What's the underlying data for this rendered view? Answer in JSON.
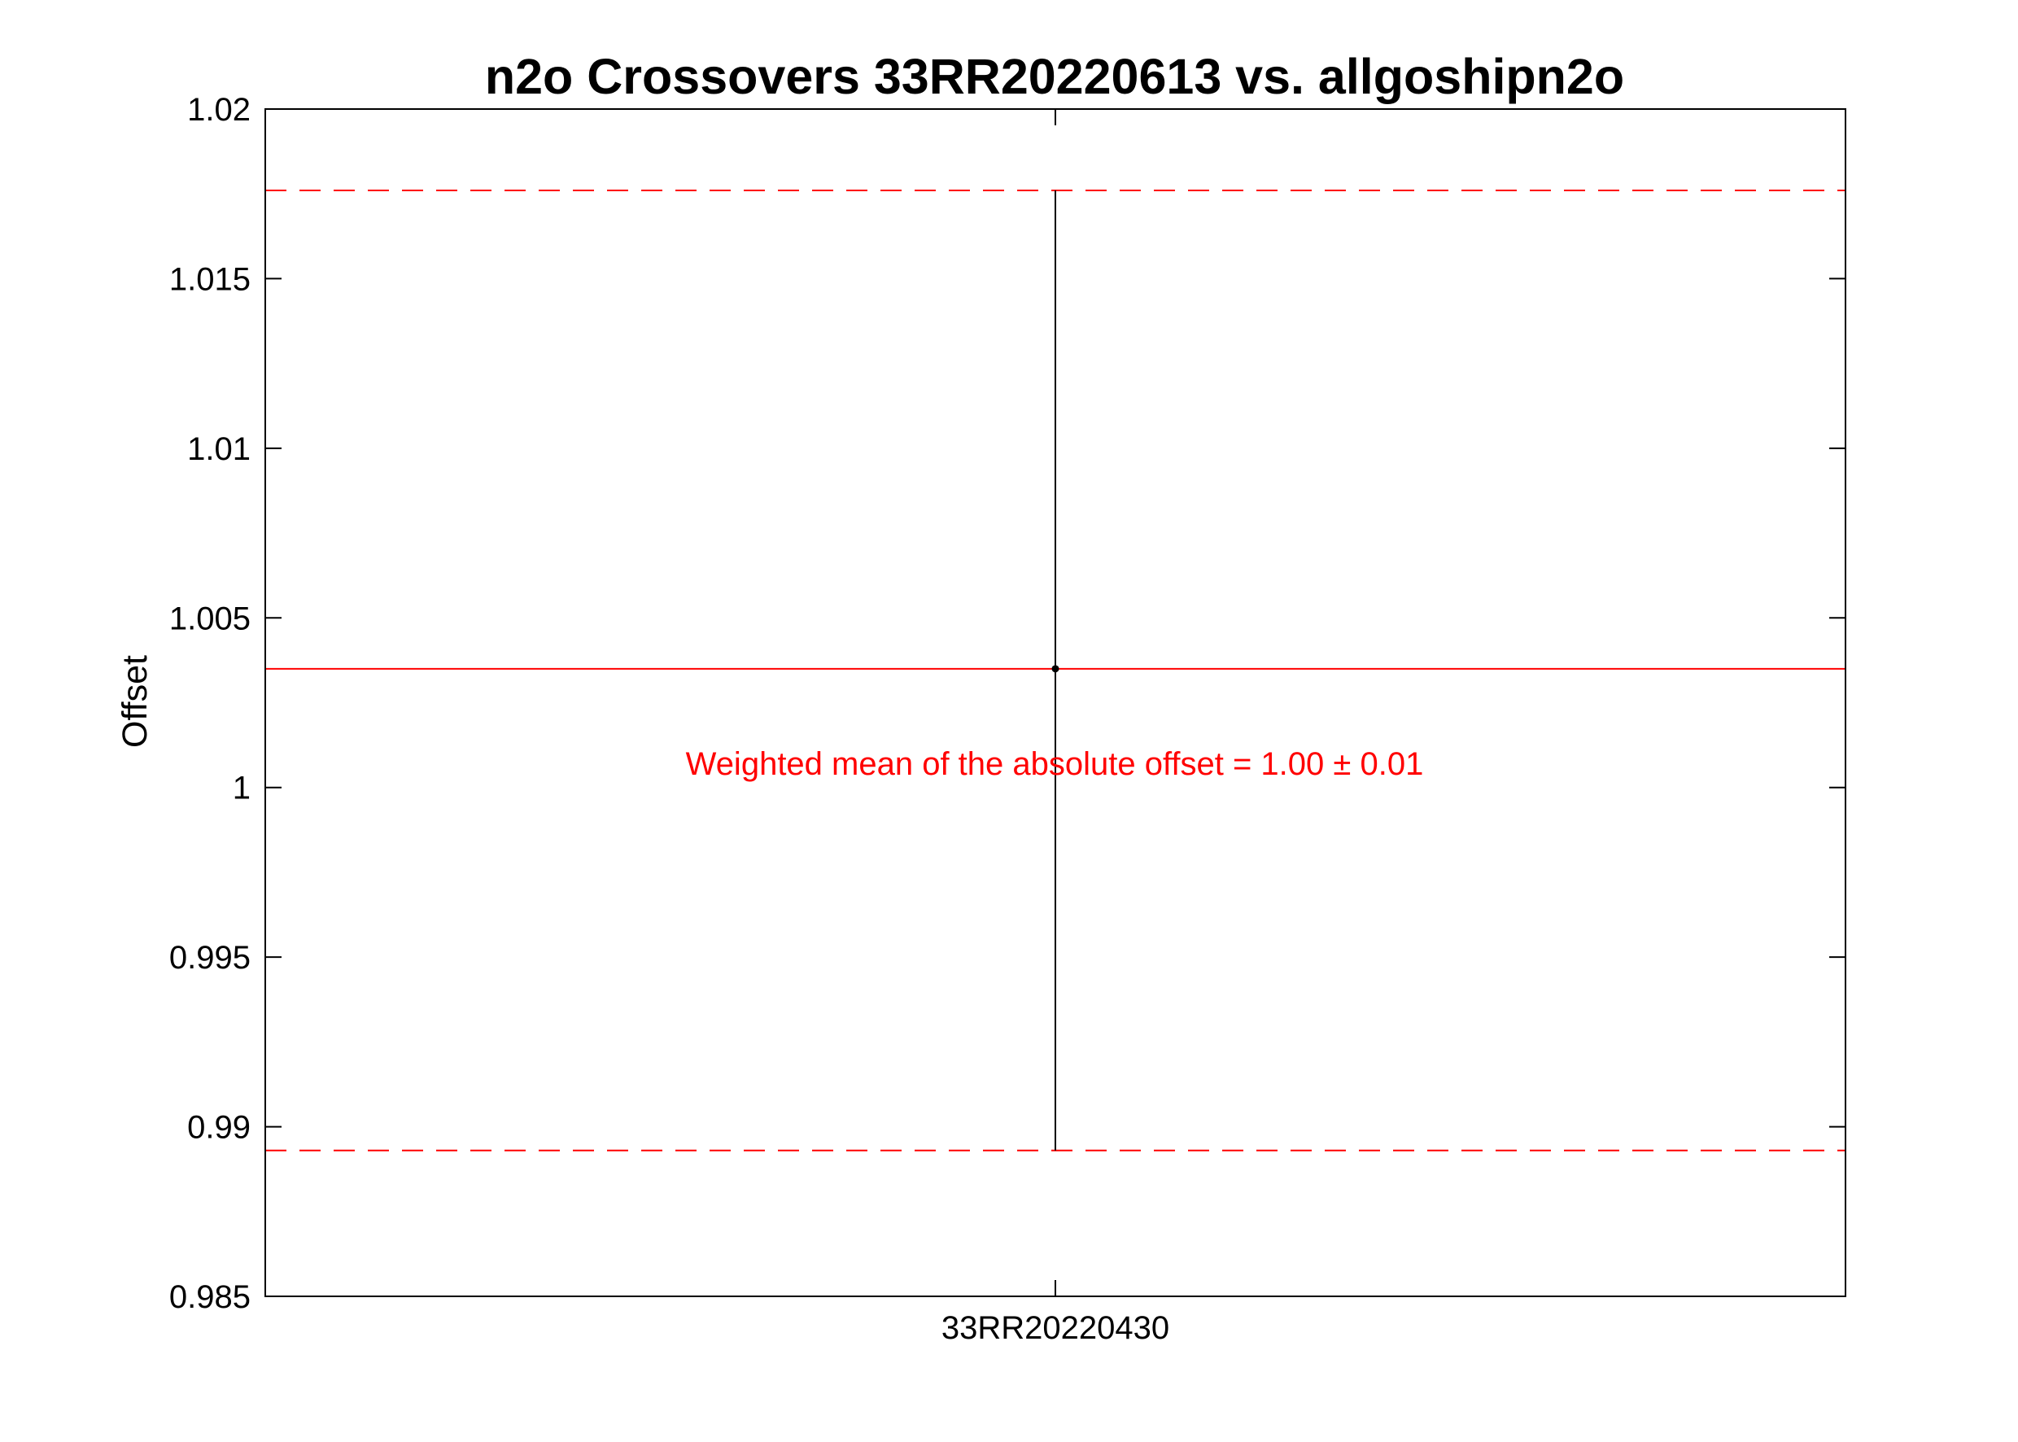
{
  "chart_data": {
    "type": "scatter",
    "title": "n2o Crossovers 33RR20220613 vs. allgoshipn2o",
    "xlabel": "",
    "ylabel": "Offset",
    "ylim": [
      0.985,
      1.02
    ],
    "yticks": [
      0.985,
      0.99,
      0.995,
      1,
      1.005,
      1.01,
      1.015,
      1.02
    ],
    "ytick_labels": [
      "0.985",
      "0.99",
      "0.995",
      "1",
      "1.005",
      "1.01",
      "1.015",
      "1.02"
    ],
    "categories": [
      "33RR20220430"
    ],
    "points": [
      {
        "category": "33RR20220430",
        "y": 1.0035,
        "y_low": 0.9893,
        "y_high": 1.0176
      }
    ],
    "reference_lines": {
      "weighted_mean": 1.0035,
      "upper_bound": 1.0176,
      "lower_bound": 0.9893
    },
    "annotation": "Weighted mean of the absolute offset = 1.00 ± 0.01",
    "grid": false,
    "colors": {
      "point": "#000000",
      "error_bar": "#000000",
      "mean_line": "#ff0000",
      "bound_lines": "#ff0000",
      "annotation": "#ff0000"
    }
  }
}
